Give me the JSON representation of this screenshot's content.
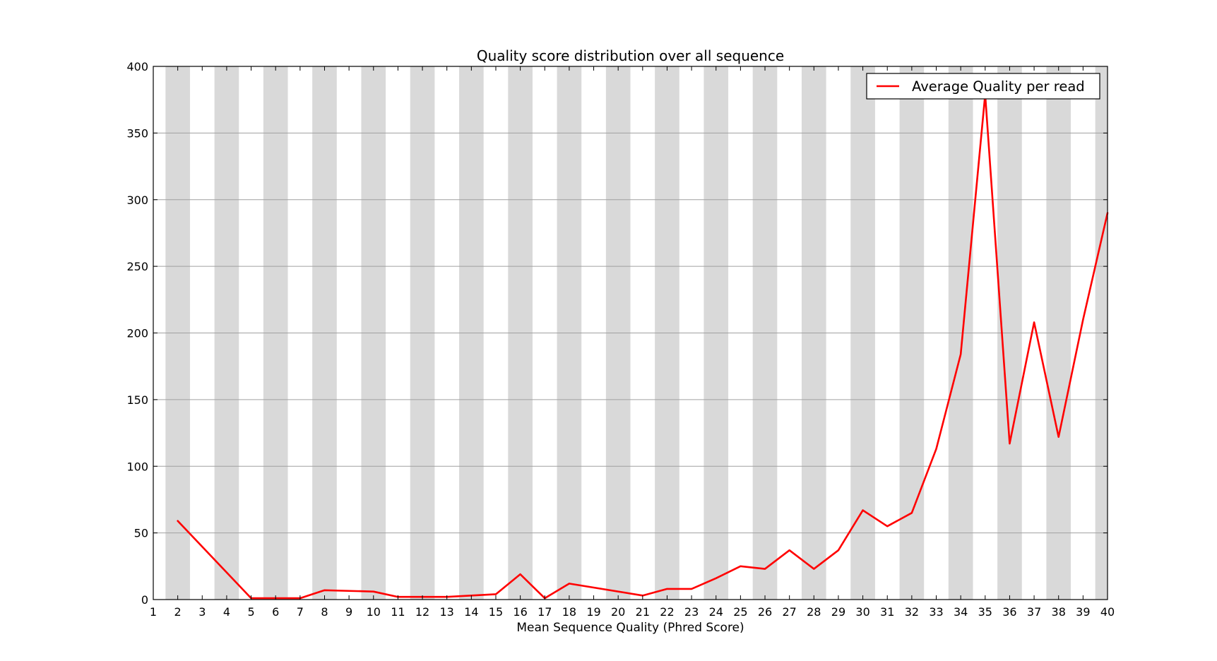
{
  "chart_data": {
    "type": "line",
    "title": "Quality score distribution over all sequence",
    "xlabel": "Mean Sequence Quality (Phred Score)",
    "ylabel": "",
    "xlim": [
      1,
      40
    ],
    "ylim": [
      0,
      400
    ],
    "x_ticks": [
      1,
      2,
      3,
      4,
      5,
      6,
      7,
      8,
      9,
      10,
      11,
      12,
      13,
      14,
      15,
      16,
      17,
      18,
      19,
      20,
      21,
      22,
      23,
      24,
      25,
      26,
      27,
      28,
      29,
      30,
      31,
      32,
      33,
      34,
      35,
      36,
      37,
      38,
      39,
      40
    ],
    "y_ticks": [
      0,
      50,
      100,
      150,
      200,
      250,
      300,
      350,
      400
    ],
    "grid": "horizontal",
    "background_bands": "alternating grey columns centered on even x values",
    "legend_position": "top-right",
    "colors": {
      "line": "#ff0000",
      "band": "#d9d9d9",
      "grid": "#a0a0a0"
    },
    "series": [
      {
        "name": "Average Quality per read",
        "x": [
          2,
          5,
          6,
          7,
          8,
          10,
          11,
          12,
          13,
          14,
          15,
          16,
          17,
          18,
          21,
          22,
          23,
          24,
          25,
          26,
          27,
          28,
          29,
          30,
          31,
          32,
          33,
          34,
          35,
          36,
          37,
          38,
          39,
          40
        ],
        "values": [
          59,
          1,
          1,
          1,
          7,
          6,
          2,
          2,
          2,
          3,
          4,
          19,
          1,
          12,
          3,
          8,
          8,
          16,
          25,
          23,
          37,
          23,
          37,
          67,
          55,
          65,
          113,
          184,
          379,
          117,
          208,
          122,
          210,
          290
        ]
      }
    ]
  }
}
